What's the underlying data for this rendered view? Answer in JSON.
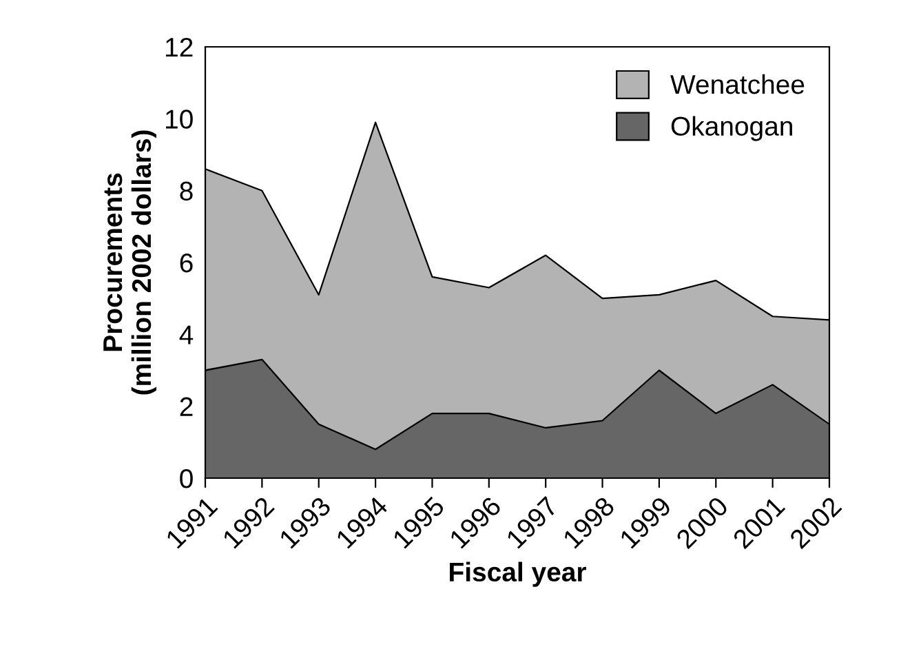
{
  "chart_data": {
    "type": "area",
    "stacked": true,
    "xlabel": "Fiscal year",
    "ylabel": "Procurements\n(million 2002 dollars)",
    "categories": [
      "1991",
      "1992",
      "1993",
      "1994",
      "1995",
      "1996",
      "1997",
      "1998",
      "1999",
      "2000",
      "2001",
      "2002"
    ],
    "series": [
      {
        "name": "Okanogan",
        "color": "#666666",
        "values": [
          3.0,
          3.3,
          1.5,
          0.8,
          1.8,
          1.8,
          1.4,
          1.6,
          3.0,
          1.8,
          2.6,
          1.5
        ]
      },
      {
        "name": "Wenatchee",
        "color": "#b3b3b3",
        "values": [
          5.6,
          4.7,
          3.6,
          9.1,
          3.8,
          3.5,
          4.8,
          3.4,
          2.1,
          3.7,
          1.9,
          2.9
        ]
      }
    ],
    "ylim": [
      0,
      12
    ],
    "yticks": [
      0,
      2,
      4,
      6,
      8,
      10,
      12
    ],
    "grid": false,
    "legend": "top right"
  }
}
